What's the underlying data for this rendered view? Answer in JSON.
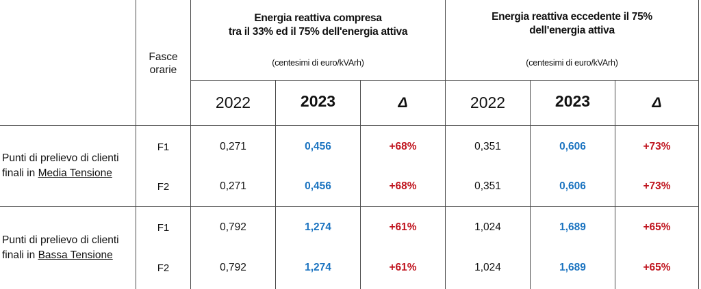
{
  "header": {
    "fasce_orarie": [
      "Fasce",
      "orarie"
    ],
    "group1": {
      "title_line1": "Energia reattiva compresa",
      "title_line2": "tra il 33% ed il 75% dell'energia attiva",
      "unit": "(centesimi di euro/kVArh)"
    },
    "group2": {
      "title_line1": "Energia reattiva eccedente il 75%",
      "title_line2": "dell'energia attiva",
      "unit": "(centesimi di euro/kVArh)"
    },
    "columns": [
      "2022",
      "2023",
      "Δ",
      "2022",
      "2023",
      "Δ"
    ]
  },
  "sections": [
    {
      "label_prefix": "Punti di prelievo di clienti",
      "label_line2_prefix": "finali in ",
      "label_underlined": "Media Tensione",
      "rows": [
        {
          "band": "F1",
          "g1_2022": "0,271",
          "g1_2023": "0,456",
          "g1_delta": "+68%",
          "g2_2022": "0,351",
          "g2_2023": "0,606",
          "g2_delta": "+73%"
        },
        {
          "band": "F2",
          "g1_2022": "0,271",
          "g1_2023": "0,456",
          "g1_delta": "+68%",
          "g2_2022": "0,351",
          "g2_2023": "0,606",
          "g2_delta": "+73%"
        }
      ]
    },
    {
      "label_prefix": "Punti di prelievo di clienti",
      "label_line2_prefix": "finali in ",
      "label_underlined": "Bassa Tensione",
      "rows": [
        {
          "band": "F1",
          "g1_2022": "0,792",
          "g1_2023": "1,274",
          "g1_delta": "+61%",
          "g2_2022": "1,024",
          "g2_2023": "1,689",
          "g2_delta": "+65%"
        },
        {
          "band": "F2",
          "g1_2022": "0,792",
          "g1_2023": "1,274",
          "g1_delta": "+61%",
          "g2_2022": "1,024",
          "g2_2023": "1,689",
          "g2_delta": "+65%"
        }
      ]
    }
  ],
  "colors": {
    "blue_value": "#1a73c0",
    "red_delta": "#c0141e",
    "grid": "#4a4a4a"
  }
}
